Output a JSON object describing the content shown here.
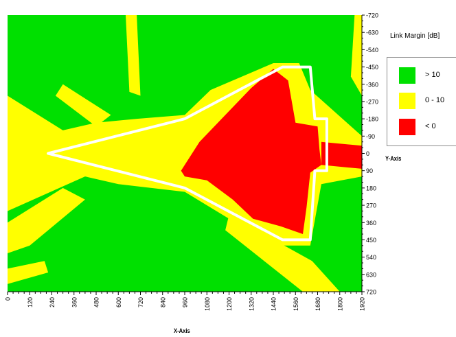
{
  "chart_data": {
    "type": "heatmap",
    "xlabel": "X-Axis",
    "ylabel": "Y-Axis",
    "x_ticks": [
      0,
      120,
      240,
      360,
      480,
      600,
      720,
      840,
      960,
      1080,
      1200,
      1320,
      1440,
      1560,
      1680,
      1800,
      1920
    ],
    "y_ticks": [
      -720,
      -630,
      -540,
      -450,
      -360,
      -270,
      -180,
      -90,
      0,
      90,
      180,
      270,
      360,
      450,
      540,
      630,
      720
    ],
    "xlim": [
      0,
      1920
    ],
    "ylim": [
      -720,
      720
    ],
    "legend": {
      "title": "Link Margin [dB]",
      "placement": "right",
      "entries": [
        {
          "label": "> 10",
          "color": "#00e000"
        },
        {
          "label": "0 - 10",
          "color": "#ffff00"
        },
        {
          "label": "< 0",
          "color": "#ff0000"
        }
      ]
    },
    "outline": {
      "color": "#ffffff",
      "points": [
        [
          220,
          0
        ],
        [
          960,
          -180
        ],
        [
          1490,
          -450
        ],
        [
          1640,
          -450
        ],
        [
          1665,
          -180
        ],
        [
          1730,
          -180
        ],
        [
          1730,
          90
        ],
        [
          1665,
          90
        ],
        [
          1640,
          450
        ],
        [
          1490,
          450
        ],
        [
          960,
          180
        ]
      ]
    },
    "regions": {
      "red": [
        [
          [
            940,
            90
          ],
          [
            1040,
            -60
          ],
          [
            1180,
            -200
          ],
          [
            1320,
            -340
          ],
          [
            1440,
            -440
          ],
          [
            1520,
            -380
          ],
          [
            1560,
            -160
          ],
          [
            1680,
            -140
          ],
          [
            1690,
            -20
          ],
          [
            1700,
            60
          ],
          [
            1640,
            100
          ],
          [
            1620,
            280
          ],
          [
            1600,
            420
          ],
          [
            1480,
            380
          ],
          [
            1330,
            340
          ],
          [
            1220,
            240
          ],
          [
            1080,
            140
          ],
          [
            960,
            120
          ]
        ],
        [
          [
            1700,
            -60
          ],
          [
            1920,
            -40
          ],
          [
            1920,
            80
          ],
          [
            1700,
            60
          ]
        ]
      ],
      "green": [
        [
          [
            0,
            -720
          ],
          [
            1920,
            -720
          ],
          [
            1920,
            -90
          ],
          [
            1640,
            -330
          ],
          [
            1580,
            -470
          ],
          [
            1440,
            -470
          ],
          [
            1100,
            -330
          ],
          [
            960,
            -200
          ],
          [
            700,
            -180
          ],
          [
            480,
            -160
          ],
          [
            300,
            -120
          ],
          [
            0,
            -300
          ]
        ],
        [
          [
            0,
            720
          ],
          [
            1920,
            720
          ],
          [
            1920,
            120
          ],
          [
            1700,
            160
          ],
          [
            1640,
            480
          ],
          [
            1440,
            480
          ],
          [
            960,
            200
          ],
          [
            600,
            160
          ],
          [
            420,
            120
          ],
          [
            0,
            300
          ]
        ],
        [
          [
            420,
            -720
          ],
          [
            520,
            -720
          ],
          [
            560,
            -420
          ],
          [
            500,
            -380
          ]
        ],
        [
          [
            760,
            -720
          ],
          [
            880,
            -720
          ],
          [
            840,
            -560
          ],
          [
            780,
            -520
          ]
        ],
        [
          [
            1200,
            -720
          ],
          [
            1380,
            -720
          ],
          [
            1320,
            -560
          ],
          [
            1240,
            -520
          ]
        ],
        [
          [
            1700,
            -720
          ],
          [
            1780,
            -720
          ],
          [
            1760,
            -500
          ],
          [
            1710,
            -480
          ]
        ],
        [
          [
            0,
            -520
          ],
          [
            140,
            -560
          ],
          [
            160,
            -400
          ],
          [
            40,
            -360
          ]
        ]
      ],
      "yellow_streaks": [
        [
          [
            0,
            360
          ],
          [
            300,
            180
          ],
          [
            420,
            240
          ],
          [
            120,
            480
          ],
          [
            0,
            520
          ]
        ],
        [
          [
            1200,
            320
          ],
          [
            1650,
            560
          ],
          [
            1800,
            720
          ],
          [
            1600,
            720
          ],
          [
            1180,
            400
          ]
        ],
        [
          [
            300,
            -360
          ],
          [
            560,
            -200
          ],
          [
            480,
            -140
          ],
          [
            260,
            -300
          ]
        ],
        [
          [
            1880,
            -720
          ],
          [
            1920,
            -720
          ],
          [
            1920,
            -300
          ],
          [
            1860,
            -400
          ]
        ],
        [
          [
            640,
            -720
          ],
          [
            700,
            -720
          ],
          [
            720,
            -300
          ],
          [
            660,
            -320
          ]
        ],
        [
          [
            0,
            600
          ],
          [
            200,
            560
          ],
          [
            220,
            620
          ],
          [
            0,
            680
          ]
        ]
      ]
    }
  }
}
